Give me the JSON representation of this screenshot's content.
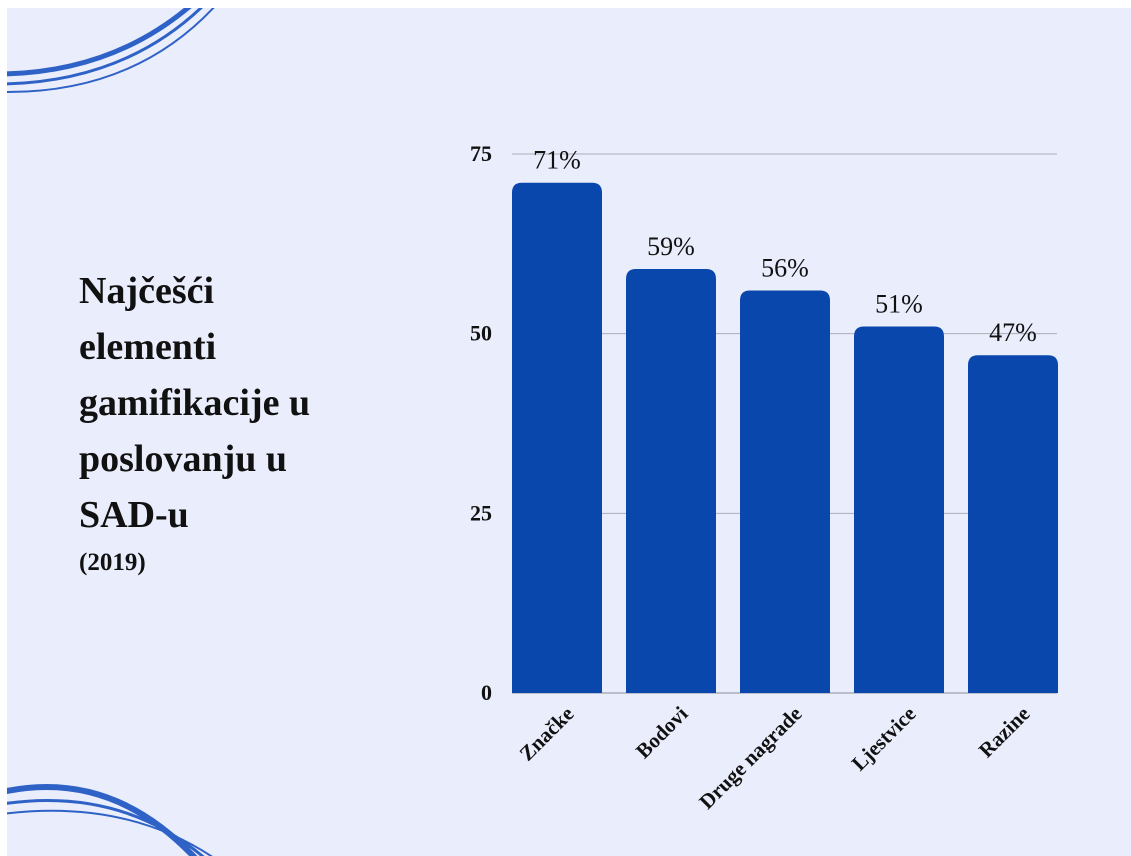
{
  "title": {
    "lines": [
      "Najčešći",
      "elementi",
      "gamifikacije u",
      "poslovanju u",
      "SAD-u"
    ],
    "subtitle": "(2019)"
  },
  "colors": {
    "background": "#eaedfb",
    "bar": "#0a47ac",
    "text": "#111111",
    "grid": "#a9aeb9",
    "decor": "#2f62c7"
  },
  "chart_data": {
    "type": "bar",
    "categories": [
      "Značke",
      "Bodovi",
      "Druge nagrade",
      "Ljestvice",
      "Razine"
    ],
    "values": [
      71,
      59,
      56,
      51,
      47
    ],
    "data_labels": [
      "71%",
      "59%",
      "56%",
      "51%",
      "47%"
    ],
    "y_ticks": [
      0,
      25,
      50,
      75
    ],
    "ylim": [
      0,
      75
    ],
    "title": "",
    "xlabel": "",
    "ylabel": "",
    "grid": true,
    "legend": "none"
  }
}
